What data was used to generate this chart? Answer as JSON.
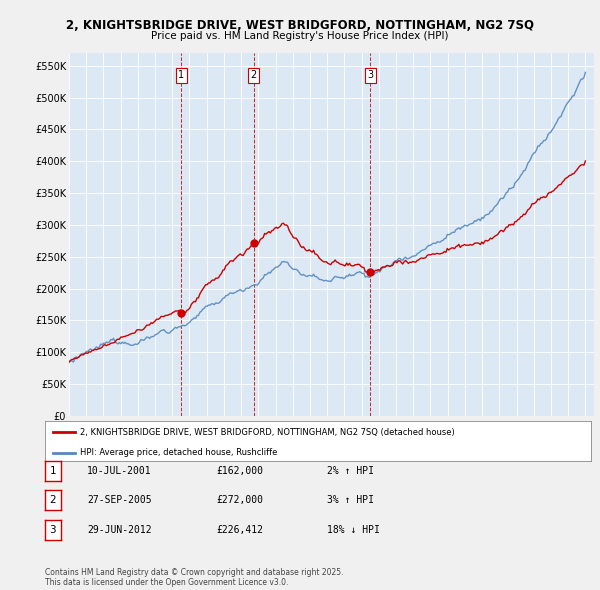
{
  "title_line1": "2, KNIGHTSBRIDGE DRIVE, WEST BRIDGFORD, NOTTINGHAM, NG2 7SQ",
  "title_line2": "Price paid vs. HM Land Registry's House Price Index (HPI)",
  "legend_label_red": "2, KNIGHTSBRIDGE DRIVE, WEST BRIDGFORD, NOTTINGHAM, NG2 7SQ (detached house)",
  "legend_label_blue": "HPI: Average price, detached house, Rushcliffe",
  "transactions": [
    {
      "num": 1,
      "date": "10-JUL-2001",
      "price": "£162,000",
      "change": "2% ↑ HPI",
      "year": 2001.53,
      "price_val": 162000
    },
    {
      "num": 2,
      "date": "27-SEP-2005",
      "price": "£272,000",
      "change": "3% ↑ HPI",
      "year": 2005.74,
      "price_val": 272000
    },
    {
      "num": 3,
      "date": "29-JUN-2012",
      "price": "£226,412",
      "change": "18% ↓ HPI",
      "year": 2012.49,
      "price_val": 226412
    }
  ],
  "footer": "Contains HM Land Registry data © Crown copyright and database right 2025.\nThis data is licensed under the Open Government Licence v3.0.",
  "ylim": [
    0,
    570000
  ],
  "yticks": [
    0,
    50000,
    100000,
    150000,
    200000,
    250000,
    300000,
    350000,
    400000,
    450000,
    500000,
    550000
  ],
  "ytick_labels": [
    "£0",
    "£50K",
    "£100K",
    "£150K",
    "£200K",
    "£250K",
    "£300K",
    "£350K",
    "£400K",
    "£450K",
    "£500K",
    "£550K"
  ],
  "bg_color": "#f0f0f0",
  "plot_bg_color": "#dce9f5",
  "red_color": "#cc0000",
  "blue_color": "#5588bb",
  "dashed_color": "#cc0000",
  "grid_color": "#ffffff",
  "shade_color": "#dce9f5",
  "xmin": 1995,
  "xmax": 2025.5
}
